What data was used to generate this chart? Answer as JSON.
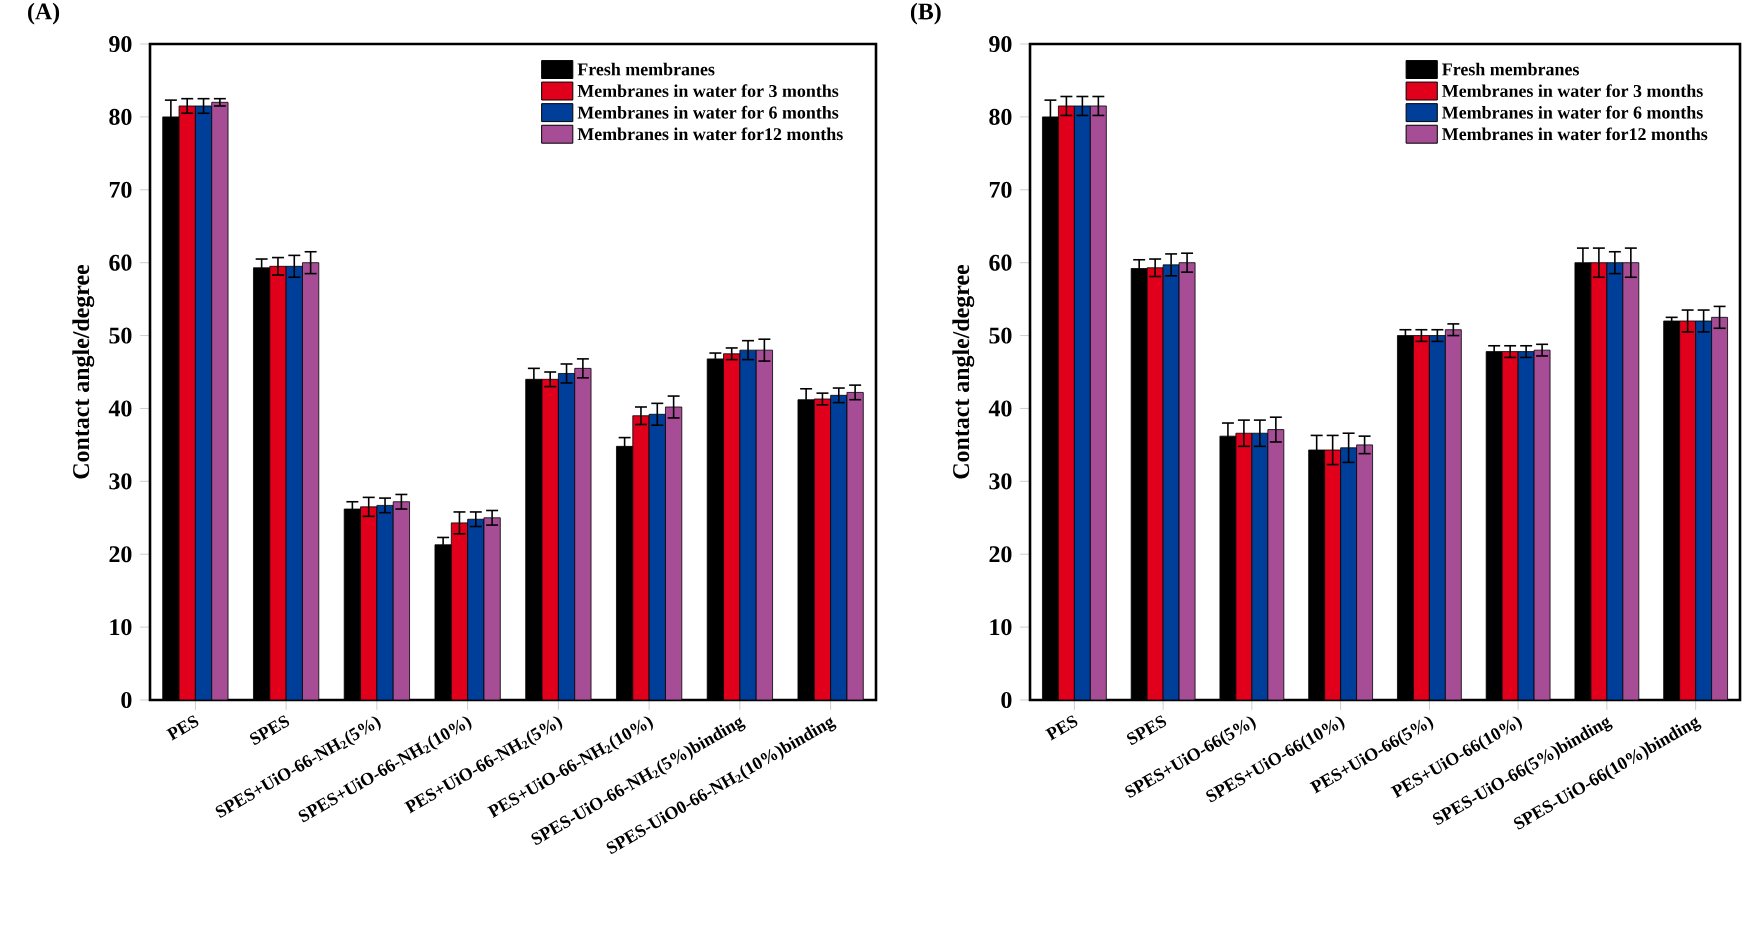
{
  "chart_data": [
    {
      "type": "bar",
      "title": "(A)",
      "ylabel": "Contact angle/degree",
      "categories": [
        "PES",
        "SPES",
        "SPES+UiO-66-NH$_{2}$(5%)",
        "SPES+UiO-66-NH$_{2}$(10%)",
        "PES+UiO-66-NH$_{2}$(5%)",
        "PES+UiO-66-NH$_{2}$(10%)",
        "SPES-UiO-66-NH$_{2}$(5%)binding",
        "SPES-UiO0-66-NH$_{2}$(10%)binding"
      ],
      "series": [
        {
          "name": "Fresh membranes",
          "color": "#000000",
          "values": [
            80,
            59.3,
            26.2,
            21.3,
            44,
            34.8,
            46.8,
            41.2
          ],
          "errors": [
            2.3,
            1.2,
            1,
            1,
            1.5,
            1.2,
            0.8,
            1.5
          ]
        },
        {
          "name": "Membranes in water for 3 months",
          "color": "#e0001b",
          "values": [
            81.5,
            59.5,
            26.5,
            24.3,
            44,
            39,
            47.5,
            41.3
          ],
          "errors": [
            1,
            1.2,
            1.3,
            1.5,
            1,
            1.2,
            0.8,
            0.8
          ]
        },
        {
          "name": "Membranes in water for 6 months",
          "color": "#003f99",
          "values": [
            81.5,
            59.5,
            26.7,
            24.8,
            44.8,
            39.2,
            48,
            41.8
          ],
          "errors": [
            1,
            1.5,
            1,
            1,
            1.3,
            1.5,
            1.3,
            1
          ]
        },
        {
          "name": "Membranes in water for12 months",
          "color": "#a64d96",
          "values": [
            82,
            60,
            27.2,
            25,
            45.5,
            40.2,
            48,
            42.2
          ],
          "errors": [
            0.5,
            1.5,
            1,
            1,
            1.3,
            1.5,
            1.5,
            1
          ]
        }
      ],
      "ylim": [
        0,
        90
      ],
      "yticks": [
        0,
        10,
        20,
        30,
        40,
        50,
        60,
        70,
        80,
        90
      ],
      "legend": "top right"
    },
    {
      "type": "bar",
      "title": "(B)",
      "ylabel": "Contact angle/degree",
      "categories": [
        "PES",
        "SPES",
        "SPES+UiO-66(5%)",
        "SPES+UiO-66(10%)",
        "PES+UiO-66(5%)",
        "PES+UiO-66(10%)",
        "SPES-UiO-66(5%)binding",
        "SPES-UiO-66(10%)binding"
      ],
      "series": [
        {
          "name": "Fresh membranes",
          "color": "#000000",
          "values": [
            80,
            59.2,
            36.2,
            34.3,
            50,
            47.8,
            60,
            52
          ],
          "errors": [
            2.3,
            1.2,
            1.8,
            2,
            0.8,
            0.8,
            2,
            0.5
          ]
        },
        {
          "name": "Membranes in water for 3 months",
          "color": "#e0001b",
          "values": [
            81.5,
            59.3,
            36.6,
            34.3,
            50,
            47.8,
            60,
            52
          ],
          "errors": [
            1.3,
            1.2,
            1.8,
            2,
            0.8,
            0.8,
            2,
            1.5
          ]
        },
        {
          "name": "Membranes in water for 6 months",
          "color": "#003f99",
          "values": [
            81.5,
            59.7,
            36.6,
            34.6,
            50,
            47.8,
            60,
            52
          ],
          "errors": [
            1.3,
            1.5,
            1.8,
            2,
            0.8,
            0.8,
            1.5,
            1.5
          ]
        },
        {
          "name": "Membranes in water for12 months",
          "color": "#a64d96",
          "values": [
            81.5,
            60,
            37.1,
            35,
            50.8,
            48,
            60,
            52.5
          ],
          "errors": [
            1.3,
            1.3,
            1.7,
            1.2,
            0.8,
            0.8,
            2,
            1.5
          ]
        }
      ],
      "ylim": [
        0,
        90
      ],
      "yticks": [
        0,
        10,
        20,
        30,
        40,
        50,
        60,
        70,
        80,
        90
      ],
      "legend": "top right"
    }
  ]
}
